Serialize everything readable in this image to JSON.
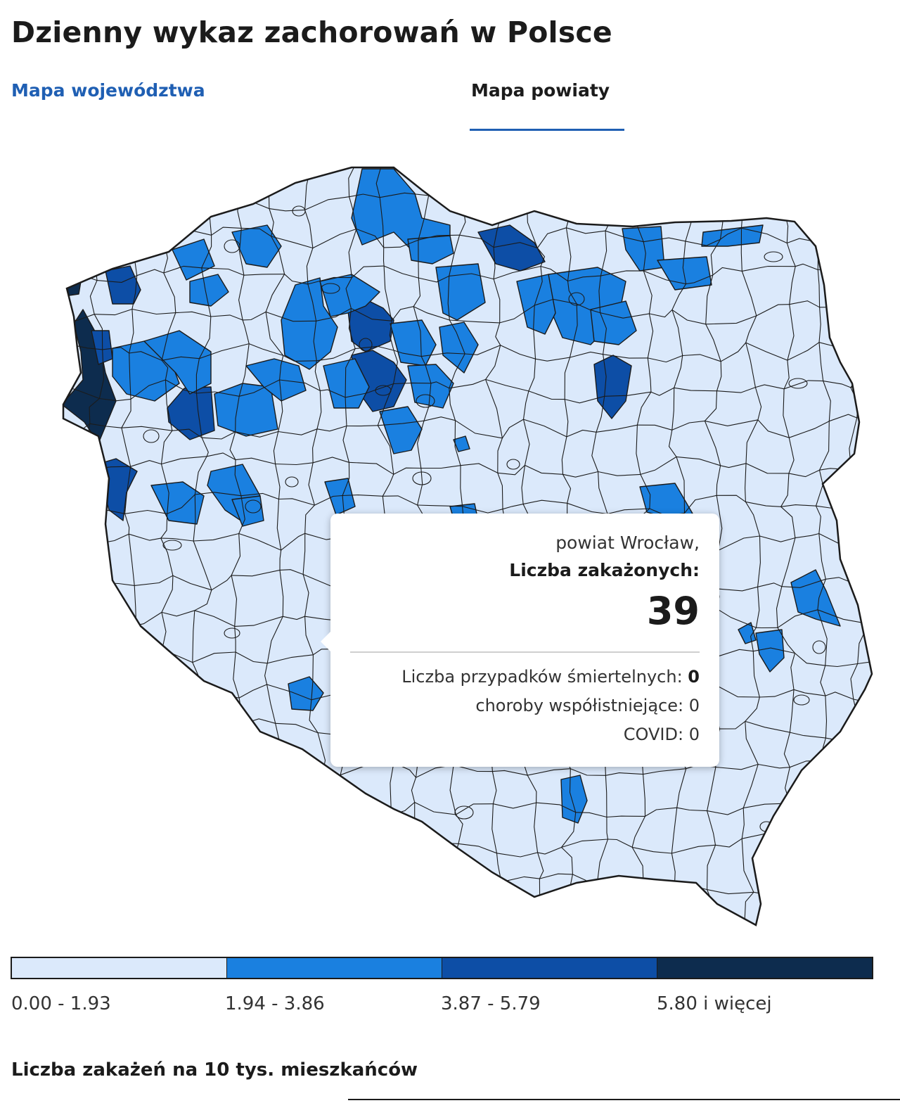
{
  "header": {
    "title": "Dzienny wykaz zachorowań w Polsce"
  },
  "tabs": [
    {
      "label": "Mapa województwa",
      "active": false
    },
    {
      "label": "Mapa powiaty",
      "active": true
    }
  ],
  "colors": {
    "accent": "#1f5fb3",
    "scale": [
      "#dbe9fb",
      "#1a80e0",
      "#0d4ea6",
      "#0d2c4e"
    ],
    "border": "#1b1b1b"
  },
  "tooltip": {
    "region": "powiat Wrocław,",
    "label": "Liczba zakażonych:",
    "count": "39",
    "deaths_label": "Liczba przypadków śmiertelnych:",
    "deaths_value": "0",
    "comorbid_label": "choroby współistniejące:",
    "comorbid_value": "0",
    "covid_label": "COVID:",
    "covid_value": "0"
  },
  "legend": {
    "ranges": [
      "0.00 - 1.93",
      "1.94 - 3.86",
      "3.87 - 5.79",
      "5.80 i więcej"
    ],
    "caption": "Liczba zakażeń na 10 tys. mieszkańców"
  }
}
